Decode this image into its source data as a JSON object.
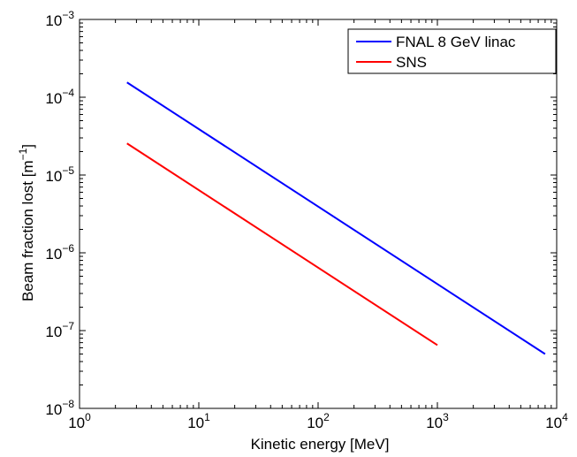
{
  "chart_data": {
    "type": "line",
    "xlabel": "Kinetic energy [MeV]",
    "ylabel": {
      "text": "Beam fraction lost [m",
      "superscript": "−1",
      "suffix": "]"
    },
    "xscale": "log",
    "yscale": "log",
    "xlim": [
      1,
      10000
    ],
    "ylim": [
      1e-08,
      0.001
    ],
    "x_ticks": [
      {
        "value": 1,
        "base": "10",
        "exp": "0"
      },
      {
        "value": 10,
        "base": "10",
        "exp": "1"
      },
      {
        "value": 100,
        "base": "10",
        "exp": "2"
      },
      {
        "value": 1000,
        "base": "10",
        "exp": "3"
      },
      {
        "value": 10000,
        "base": "10",
        "exp": "4"
      }
    ],
    "y_ticks": [
      {
        "value": 1e-08,
        "base": "10",
        "exp": "−8"
      },
      {
        "value": 1e-07,
        "base": "10",
        "exp": "−7"
      },
      {
        "value": 1e-06,
        "base": "10",
        "exp": "−6"
      },
      {
        "value": 1e-05,
        "base": "10",
        "exp": "−5"
      },
      {
        "value": 0.0001,
        "base": "10",
        "exp": "−4"
      },
      {
        "value": 0.001,
        "base": "10",
        "exp": "−3"
      }
    ],
    "grid": false,
    "legend_position": "top-right",
    "series": [
      {
        "name": "FNAL 8 GeV linac",
        "color": "#0000ff",
        "x": [
          2.5,
          8000
        ],
        "y": [
          0.000155,
          5e-08
        ]
      },
      {
        "name": "SNS",
        "color": "#ff0000",
        "x": [
          2.5,
          1000
        ],
        "y": [
          2.55e-05,
          6.5e-08
        ]
      }
    ]
  }
}
